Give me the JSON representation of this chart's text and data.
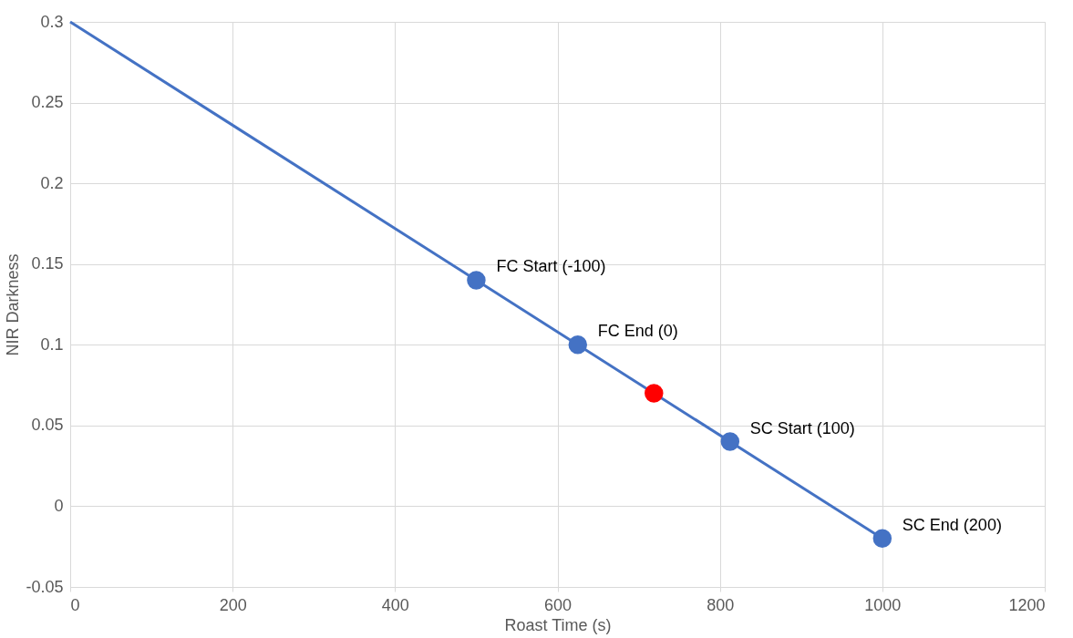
{
  "chart_data": {
    "type": "scatter",
    "xlabel": "Roast Time (s)",
    "ylabel": "NIR Darkness",
    "xlim": [
      0,
      1200
    ],
    "xticks": [
      0,
      200,
      400,
      600,
      800,
      1000,
      1200
    ],
    "ylim": [
      -0.05,
      0.3
    ],
    "yticks": [
      -0.05,
      0,
      0.05,
      0.1,
      0.15,
      0.2,
      0.25,
      0.3
    ],
    "grid": true,
    "series": [
      {
        "type": "line",
        "color": "#4472c4",
        "marker": "none",
        "line_style": "solid",
        "x": [
          0,
          1000
        ],
        "values": [
          0.3,
          -0.02
        ]
      },
      {
        "color": "#4472c4",
        "marker": "circle",
        "x": [
          500,
          625,
          812.5,
          1000
        ],
        "values": [
          0.14,
          0.1,
          0.04,
          -0.02
        ]
      },
      {
        "color": "#ff0000",
        "marker": "circle",
        "x": [
          718.75
        ],
        "values": [
          0.07
        ]
      }
    ],
    "annotations": [
      {
        "text": "FC Start (-100)",
        "x": 500,
        "y": 0.14
      },
      {
        "text": "FC End (0)",
        "x": 625,
        "y": 0.1
      },
      {
        "text": "SC Start (100)",
        "x": 812.5,
        "y": 0.04
      },
      {
        "text": "SC End (200)",
        "x": 1000,
        "y": -0.02
      }
    ]
  }
}
